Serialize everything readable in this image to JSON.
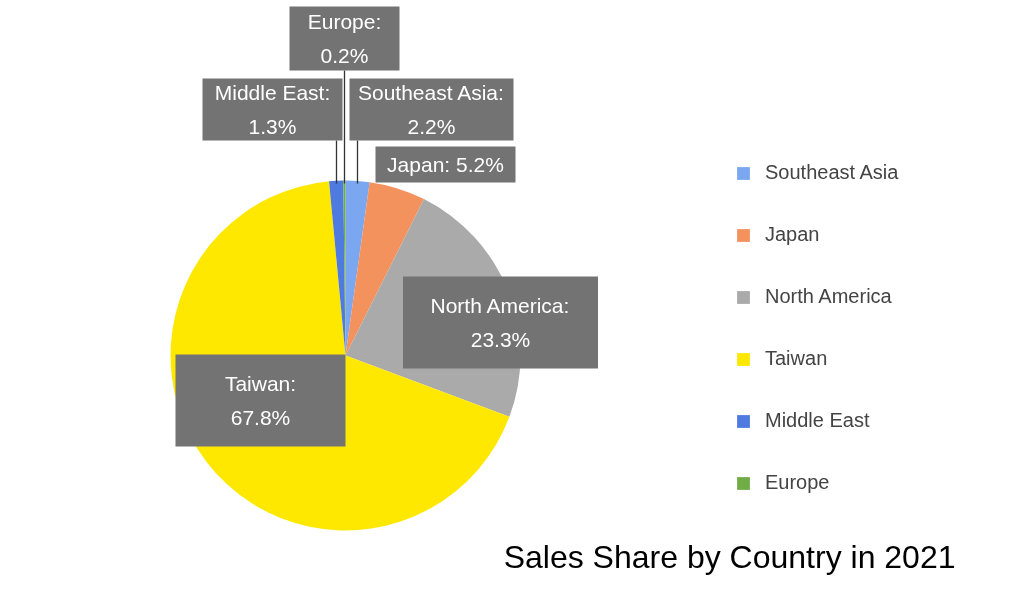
{
  "chart_data": {
    "type": "pie",
    "title": "Sales Share by Country in 2021",
    "categories": [
      "Southeast Asia",
      "Japan",
      "North America",
      "Taiwan",
      "Middle East",
      "Europe"
    ],
    "values": [
      2.2,
      5.2,
      23.3,
      67.8,
      1.3,
      0.2
    ],
    "colors": [
      "#7ba7f0",
      "#f4925e",
      "#aaaaaa",
      "#ffe800",
      "#4f7ae0",
      "#70ad47"
    ],
    "value_labels": [
      "Southeast Asia:\n2.2%",
      "Japan: 5.2%",
      "North America:\n23.3%",
      "Taiwan:\n67.8%",
      "Middle East:\n1.3%",
      "Europe:\n0.2%"
    ],
    "legend": "right"
  }
}
